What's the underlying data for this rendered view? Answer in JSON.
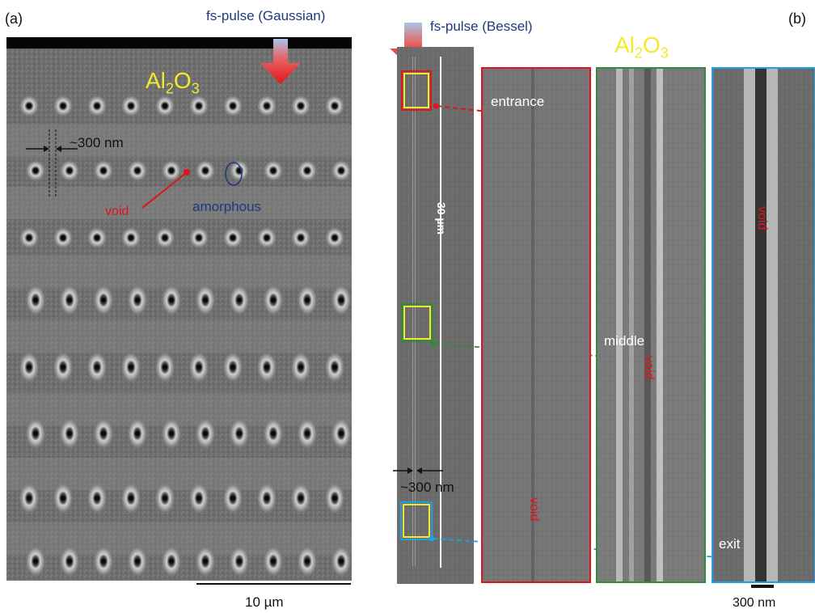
{
  "panels": {
    "a": {
      "label": "(a)",
      "pulse": "fs-pulse (Gaussian)",
      "material": "Al2O3",
      "spacing_label": "~300 nm",
      "void_label": "void",
      "amorphous_label": "amorphous",
      "scale_label": "10 µm"
    },
    "b": {
      "label": "(b)",
      "pulse": "fs-pulse (Bessel)",
      "material": "Al2O3",
      "length_label": "30 µm",
      "entrance_label": "entrance",
      "middle_label": "middle",
      "exit_label": "exit",
      "width_label": "~300 nm",
      "void_red_label": "void",
      "void_green_label": "void",
      "void_blue_label": "void",
      "scale_label": "300 nm"
    }
  },
  "colors": {
    "accent_red": "#e0141e",
    "accent_green": "#2e8b3a",
    "accent_blue": "#1ea0e6",
    "accent_yellow": "#f2ea2a",
    "text_blue": "#1f3a7a"
  }
}
